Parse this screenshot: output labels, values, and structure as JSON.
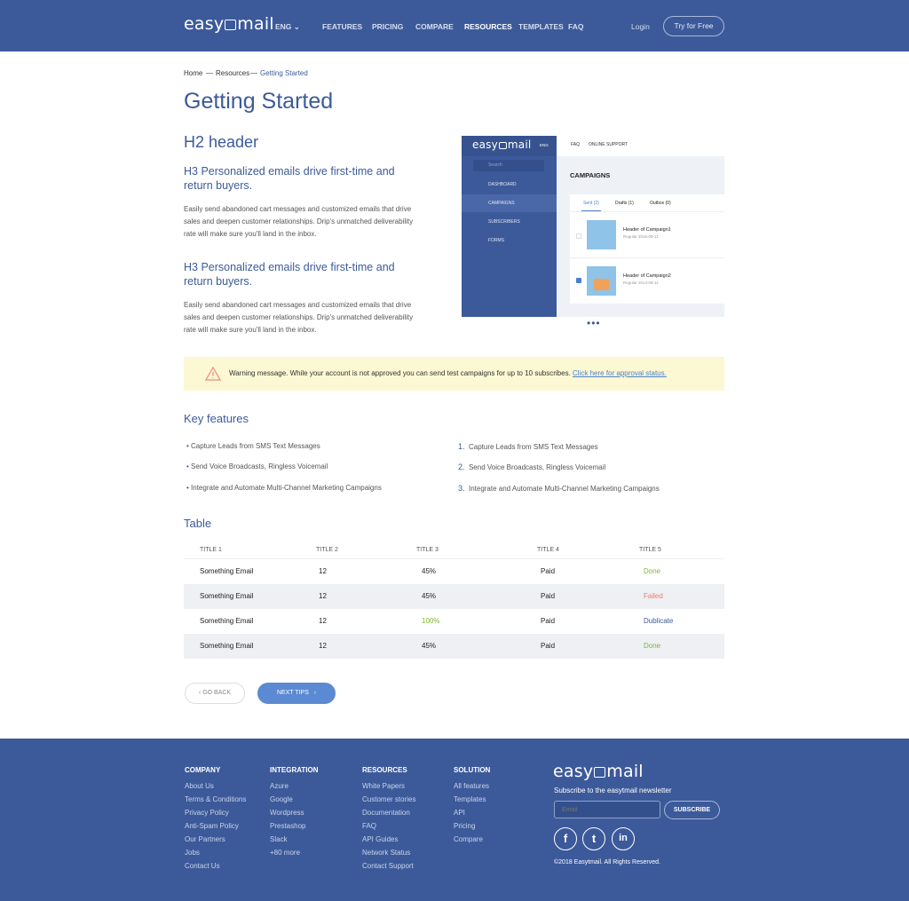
{
  "header": {
    "logo": "easymail",
    "lang": "ENG",
    "nav": [
      "FEATURES",
      "PRICING",
      "COMPARE",
      "RESOURCES",
      "TEMPLATES",
      "FAQ"
    ],
    "active": "RESOURCES",
    "login": "Login",
    "try": "Try for Free"
  },
  "breadcrumb": [
    "Home",
    "Resources",
    "Getting Started"
  ],
  "page": {
    "title": "Getting Started",
    "h2": "H2 header",
    "sections": [
      {
        "h3": "H3 Personalized emails drive first-time and return buyers.",
        "text": "Easily send abandoned cart messages and customized emails that drive sales and deepen customer relationships. Drip's unmatched deliverability rate will make sure you'll land in the inbox."
      },
      {
        "h3": "H3 Personalized emails drive first-time and return buyers.",
        "text": "Easily send abandoned cart messages and customized emails that drive sales and deepen customer relationships. Drip's unmatched deliverability rate will make sure you'll land in the inbox."
      }
    ]
  },
  "app_preview": {
    "logo": "easymail",
    "lang": "ENG",
    "top_links": [
      "FAQ",
      "ONLINE SUPPORT"
    ],
    "search_placeholder": "Search",
    "menu": [
      "DASHBOARD",
      "CAMPAIGNS",
      "SUBSCRIBERS",
      "FORMS"
    ],
    "active_menu": "CAMPAIGNS",
    "heading": "CAMPAIGNS",
    "tabs": [
      "Sent (2)",
      "Drafts (1)",
      "Outbox (0)"
    ],
    "campaigns": [
      {
        "title": "Header of Campaign1",
        "meta": "Regular 2015-09-11",
        "checked": false
      },
      {
        "title": "Header of Campaign2",
        "meta": "Regular 2014-09-11",
        "checked": true
      }
    ]
  },
  "warning": {
    "text": "Warning message.  While your account is not approved you can send test campaigns for up to 10 subscribes.",
    "link": "Click here for approval status."
  },
  "features": {
    "title": "Key features",
    "bullets": [
      "Capture Leads from SMS Text Messages",
      "Send Voice Broadcasts, Ringless Voicemail",
      "Integrate and Automate Multi-Channel Marketing Campaigns"
    ],
    "numbered": [
      "Capture Leads from SMS Text Messages",
      "Send Voice Broadcasts, Ringless Voicemail",
      "Integrate and Automate Multi-Channel Marketing Campaigns"
    ],
    "numbers": [
      "1.",
      "2.",
      "3."
    ]
  },
  "table": {
    "title": "Table",
    "headers": [
      "TITLE 1",
      "TITLE 2",
      "TITLE 3",
      "TITLE 4",
      "TITLE 5"
    ],
    "rows": [
      [
        "Something Email",
        "12",
        "45%",
        "Paid",
        "Done"
      ],
      [
        "Something Email",
        "12",
        "45%",
        "Paid",
        "Failed"
      ],
      [
        "Something Email",
        "12",
        "100%",
        "Paid",
        "Dublicate"
      ],
      [
        "Something Email",
        "12",
        "45%",
        "Paid",
        "Done"
      ]
    ]
  },
  "colors": {
    "brand": "#3c5a9a",
    "done": "#7cb82f",
    "failed": "#f07b6e",
    "dublicate": "#3c5a9a",
    "warning_bg": "#fbf8d3"
  },
  "buttons": {
    "back": "GO BACK",
    "next": "NEXT TIPS"
  },
  "footer": {
    "columns": [
      {
        "title": "COMPANY",
        "links": [
          "About Us",
          "Terms & Conditions",
          "Privacy Policy",
          "Anti-Spam Policy",
          "Our Partners",
          "Jobs",
          "Contact Us"
        ]
      },
      {
        "title": "INTEGRATION",
        "links": [
          "Azure",
          "Google",
          "Wordpress",
          "Prestashop",
          "Slack",
          "+80 more"
        ]
      },
      {
        "title": "RESOURCES",
        "links": [
          "White Papers",
          "Customer stories",
          "Documentation",
          "FAQ",
          "API Guides",
          "Network Status",
          "Contact Support"
        ]
      },
      {
        "title": "SOLUTION",
        "links": [
          "All features",
          "Templates",
          "API",
          "Pricing",
          "Compare"
        ]
      }
    ],
    "logo": "easymail",
    "subscribe_text": "Subscribe to the easytmail newsletter",
    "email_placeholder": "Email",
    "subscribe": "SUBSCRIBE",
    "social": [
      "f",
      "t",
      "in"
    ],
    "copyright": "©2018 Easytmail. All Rights Reserved."
  }
}
